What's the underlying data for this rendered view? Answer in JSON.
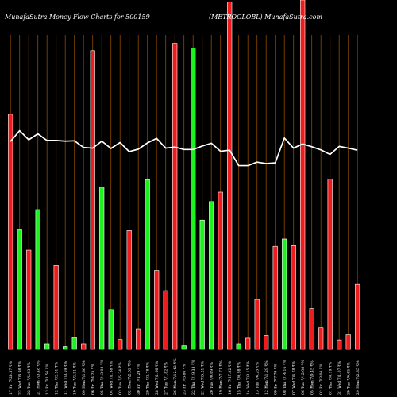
{
  "header": {
    "left_title": "MunafaSutra  Money Flow  Charts for 500159",
    "right_title": "(METROGLOBL) MunafaSutra.com"
  },
  "colors": {
    "background": "#000000",
    "grid": "#8a4a00",
    "up": "#1ef21e",
    "down": "#ee1c1c",
    "bar_outline": "#ffffff",
    "line": "#ffffff",
    "text": "#ffffff"
  },
  "chart_data": {
    "type": "bar",
    "grid": true,
    "series": [
      {
        "kind": "bar",
        "unit": "relative",
        "values": [
          0.673,
          0.342,
          0.284,
          0.4,
          0.016,
          0.24,
          0.008,
          0.034,
          0.016,
          0.855,
          0.464,
          0.114,
          0.028,
          0.34,
          0.059,
          0.486,
          0.226,
          0.168,
          0.876,
          0.01,
          0.863,
          0.37,
          0.423,
          0.45,
          0.994,
          0.016,
          0.032,
          0.143,
          0.04,
          0.295,
          0.316,
          0.297,
          1.0,
          0.117,
          0.062,
          0.487,
          0.027,
          0.042,
          0.186
        ],
        "colors": [
          "down",
          "up",
          "down",
          "up",
          "up",
          "down",
          "up",
          "up",
          "down",
          "down",
          "up",
          "up",
          "down",
          "down",
          "down",
          "up",
          "down",
          "down",
          "down",
          "up",
          "up",
          "up",
          "up",
          "down",
          "down",
          "up",
          "down",
          "down",
          "down",
          "down",
          "up",
          "down",
          "down",
          "down",
          "down",
          "down",
          "down",
          "down",
          "down"
        ]
      },
      {
        "kind": "line",
        "unit": "relative",
        "values": [
          0.595,
          0.626,
          0.6,
          0.617,
          0.598,
          0.598,
          0.596,
          0.597,
          0.578,
          0.576,
          0.596,
          0.575,
          0.592,
          0.566,
          0.573,
          0.591,
          0.604,
          0.576,
          0.579,
          0.572,
          0.572,
          0.582,
          0.59,
          0.567,
          0.57,
          0.526,
          0.526,
          0.536,
          0.532,
          0.534,
          0.605,
          0.576,
          0.588,
          0.58,
          0.571,
          0.558,
          0.581,
          0.576,
          0.57
        ]
      }
    ],
    "categories": [
      "17 Fri 7/24.37 ₹%",
      "22 Wed 7/6.98 ₹%",
      "22 Tue 7/5.63 ₹%",
      "21 Mon 7/3.48 ₹%",
      "13 Fri 7/1.56 ₹%",
      "12 Thu 7/2.51 ₹%",
      "11 Wed 7/3.59 ₹%",
      "10 Tue 7/2.51 ₹%",
      "09 Mon 7/1.36 ₹%",
      "06 Fri 7/4.25 ₹%",
      "05 Thu 7/13.98 ₹%",
      "04 Wed 7/1.38 ₹%",
      "03 Tue 7/5.24 ₹%",
      "02 Mon 7/2.52 ₹%",
      "30 Fri 7/1.29 ₹%",
      "29 Thu 7/2.78 ₹%",
      "28 Wed 7/1.66 ₹%",
      "27 Tue 7/1.82 ₹%",
      "26 Mon 7/12.42 ₹%",
      "23 Fri 7/5.86 ₹%",
      "22 Thu 7/19.33 ₹%",
      "21 Wed 7/5.21 ₹%",
      "20 Tue 7/0.69 ₹%",
      "19 Mon 7/7.71 ₹%",
      "16 Fri 7/17.82 ₹%",
      "15 Thu 7/0.98 ₹%",
      "14 Wed 7/3.15 ₹%",
      "13 Tue 7/6.25 ₹%",
      "12 Mon 7/1.29 ₹%",
      "09 Fri 7/7.79 ₹%",
      "08 Thu 7/14.16 ₹%",
      "07 Wed 7/4.78 ₹%",
      "06 Tue 7/12.98 ₹%",
      "05 Mon 7/9.45 ₹%",
      "02 Fri 7/3.04 ₹%",
      "01 Thu 7/8.19 ₹%",
      "31 Wed 7/1.07 ₹%",
      "30 Tue 7/0.65 ₹%",
      "29 Mon 7/2.85 ₹%"
    ]
  }
}
